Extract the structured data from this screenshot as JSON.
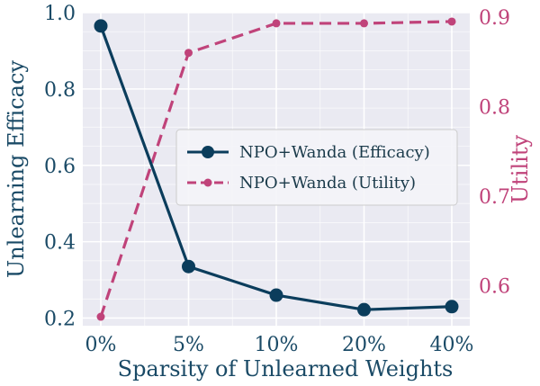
{
  "chart_data": {
    "type": "line",
    "categories": [
      "0%",
      "5%",
      "10%",
      "20%",
      "40%"
    ],
    "xlabel": "Sparsity of Unlearned Weights",
    "ylabel_left": "Unlearning Efficacy",
    "ylabel_right": "Utility",
    "ylim_left": [
      0.18,
      1.0
    ],
    "ylim_right": [
      0.555,
      0.905
    ],
    "yticks_left": [
      "0.2",
      "0.4",
      "0.6",
      "0.8",
      "1.0"
    ],
    "yticks_left_values": [
      0.2,
      0.4,
      0.6,
      0.8,
      1.0
    ],
    "yticks_right": [
      "0.6",
      "0.7",
      "0.8",
      "0.9"
    ],
    "yticks_right_values": [
      0.6,
      0.7,
      0.8,
      0.9
    ],
    "grid": true,
    "legend_position": "center-right",
    "series": [
      {
        "name": "NPO+Wanda (Efficacy)",
        "axis": "left",
        "style": "solid",
        "marker": "circle",
        "color": "#0b3d5c",
        "values": [
          0.965,
          0.335,
          0.26,
          0.222,
          0.23
        ]
      },
      {
        "name": "NPO+Wanda (Utility)",
        "axis": "right",
        "style": "dashed",
        "marker": "small-circle",
        "color": "#c0437a",
        "values": [
          0.565,
          0.86,
          0.893,
          0.893,
          0.895
        ]
      }
    ]
  }
}
